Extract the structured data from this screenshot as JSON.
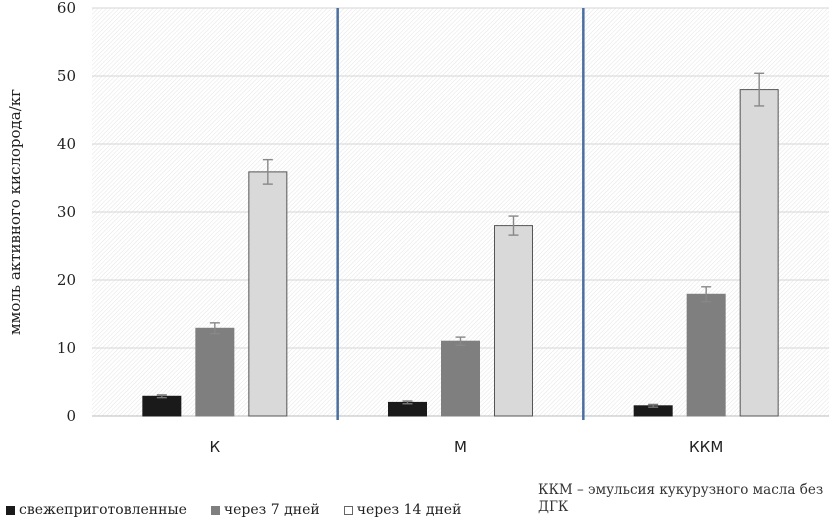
{
  "chart_data": {
    "type": "bar",
    "title": "",
    "xlabel": "",
    "ylabel": "ммоль активного кислорода/кг",
    "ylim": [
      0,
      60
    ],
    "yticks": [
      0,
      10,
      20,
      30,
      40,
      50,
      60
    ],
    "categories": [
      "К",
      "М",
      "ККМ"
    ],
    "series": [
      {
        "name": "свежеприготовленные",
        "color": "#1a1a1a",
        "values": [
          2.9,
          2.0,
          1.5
        ],
        "errors": [
          0.2,
          0.2,
          0.2
        ]
      },
      {
        "name": "через 7 дней",
        "color": "#7f7f7f",
        "values": [
          12.9,
          11.0,
          17.9
        ],
        "errors": [
          0.8,
          0.6,
          1.1
        ]
      },
      {
        "name": "через 14 дней",
        "color": "#d9d9d9",
        "values": [
          35.9,
          28.0,
          48.0
        ],
        "errors": [
          1.8,
          1.4,
          2.4
        ]
      }
    ],
    "grid": true,
    "legend_position": "bottom-left",
    "separator_color": "#4a6fa0",
    "annotation": "ККМ – эмульсия кукурузного масла без ДГК"
  }
}
